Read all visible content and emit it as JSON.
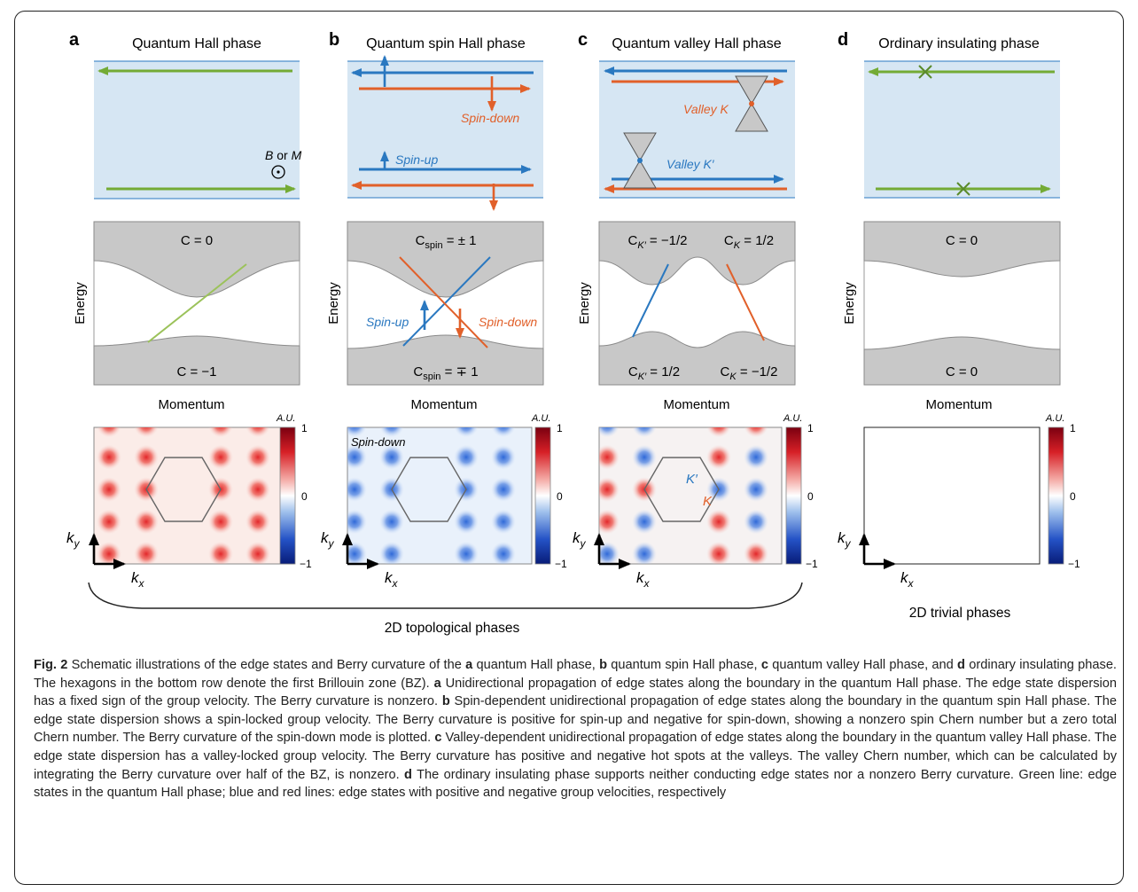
{
  "figure": {
    "panels": [
      {
        "letter": "a",
        "title": "Quantum Hall phase",
        "top_label_bc": "",
        "top_label_bc_or": "",
        "top_label_m": "",
        "band_top": "C = 0",
        "band_bottom": "C = −1",
        "energy_label": "Energy",
        "momentum_label": "Momentum",
        "map_label": "",
        "au": "A.U.",
        "cb_max": "1",
        "cb_mid": "0",
        "cb_min": "−1",
        "ky": "k",
        "ky_sub": "y",
        "kx": "k",
        "kx_sub": "x"
      },
      {
        "letter": "b",
        "title": "Quantum spin Hall phase",
        "energy_label": "Energy",
        "momentum_label": "Momentum",
        "map_label": "Spin-down",
        "au": "A.U.",
        "cb_max": "1",
        "cb_mid": "0",
        "cb_min": "−1",
        "ky": "k",
        "ky_sub": "y",
        "kx": "k",
        "kx_sub": "x"
      },
      {
        "letter": "c",
        "title": "Quantum valley Hall phase",
        "energy_label": "Energy",
        "momentum_label": "Momentum",
        "au": "A.U.",
        "cb_max": "1",
        "cb_mid": "0",
        "cb_min": "−1",
        "ky": "k",
        "ky_sub": "y",
        "kx": "k",
        "kx_sub": "x"
      },
      {
        "letter": "d",
        "title": "Ordinary insulating phase",
        "band_top": "C = 0",
        "band_bottom": "C = 0",
        "energy_label": "Energy",
        "momentum_label": "Momentum",
        "au": "A.U.",
        "cb_max": "1",
        "cb_mid": "0",
        "cb_min": "−1",
        "ky": "k",
        "ky_sub": "y",
        "kx": "k",
        "kx_sub": "x"
      }
    ],
    "a_field": {
      "b": "B",
      "or": " or ",
      "m": "M"
    },
    "b_labels": {
      "spin_down_top": "Spin-down",
      "spin_up_top": "Spin-up",
      "spin_up_band": "Spin-up",
      "spin_down_band": "Spin-down",
      "c_spin_top_c": "C",
      "c_spin_top_sub": "spin",
      "c_spin_top_val": " = ± 1",
      "c_spin_bot_c": "C",
      "c_spin_bot_sub": "spin",
      "c_spin_bot_val": " = ∓ 1"
    },
    "c_labels": {
      "valley_k": "Valley K",
      "valley_kp": "Valley K′",
      "ck_top_left_c": "C",
      "ck_top_left_sub": "K′",
      "ck_top_left_val": " = −1/2",
      "ck_top_right_c": "C",
      "ck_top_right_sub": "K",
      "ck_top_right_val": " = 1/2",
      "ck_bot_left_c": "C",
      "ck_bot_left_sub": "K′",
      "ck_bot_left_val": " = 1/2",
      "ck_bot_right_c": "C",
      "ck_bot_right_sub": "K",
      "ck_bot_right_val": " = −1/2",
      "map_kp": "K′",
      "map_k": "K"
    },
    "topological_label": "2D topological phases",
    "trivial_label": "2D trivial phases",
    "colors": {
      "green": "#74ab35",
      "blue": "#2a78c0",
      "orange": "#e1602a",
      "panel_bg": "#d6e6f3",
      "band_fill": "#c8c8c8",
      "band_line": "#8a8a8a"
    }
  },
  "caption": {
    "fig_label": "Fig. 2",
    "t1": " Schematic illustrations of the edge states and Berry curvature of the ",
    "a1": "a",
    "t2": " quantum Hall phase, ",
    "b1": "b",
    "t3": " quantum spin Hall phase, ",
    "c1": "c",
    "t4": " quantum valley Hall phase, and ",
    "d1": "d",
    "t5": " ordinary insulating phase. The hexagons in the bottom row denote the first Brillouin zone (BZ). ",
    "a2": "a",
    "t6": " Unidirectional propagation of edge states along the boundary in the quantum Hall phase. The edge state dispersion has a fixed sign of the group velocity. The Berry curvature is nonzero. ",
    "b2": "b",
    "t7": " Spin-dependent unidirectional propagation of edge states along the boundary in the quantum spin Hall phase. The edge state dispersion shows a spin-locked group velocity. The Berry curvature is positive for spin-up and negative for spin-down, showing a nonzero spin Chern number but a zero total Chern number. The Berry curvature of the spin-down mode is plotted. ",
    "c2": "c",
    "t8": " Valley-dependent unidirectional propagation of edge states along the boundary in the quantum valley Hall phase. The edge state dispersion has a valley-locked group velocity. The Berry curvature has positive and negative hot spots at the valleys. The valley Chern number, which can be calculated by integrating the Berry curvature over half of the BZ, is nonzero. ",
    "d2": "d",
    "t9": " The ordinary insulating phase supports neither conducting edge states nor a nonzero Berry curvature. Green line: edge states in the quantum Hall phase; blue and red lines: edge states with positive and negative group velocities, respectively"
  }
}
